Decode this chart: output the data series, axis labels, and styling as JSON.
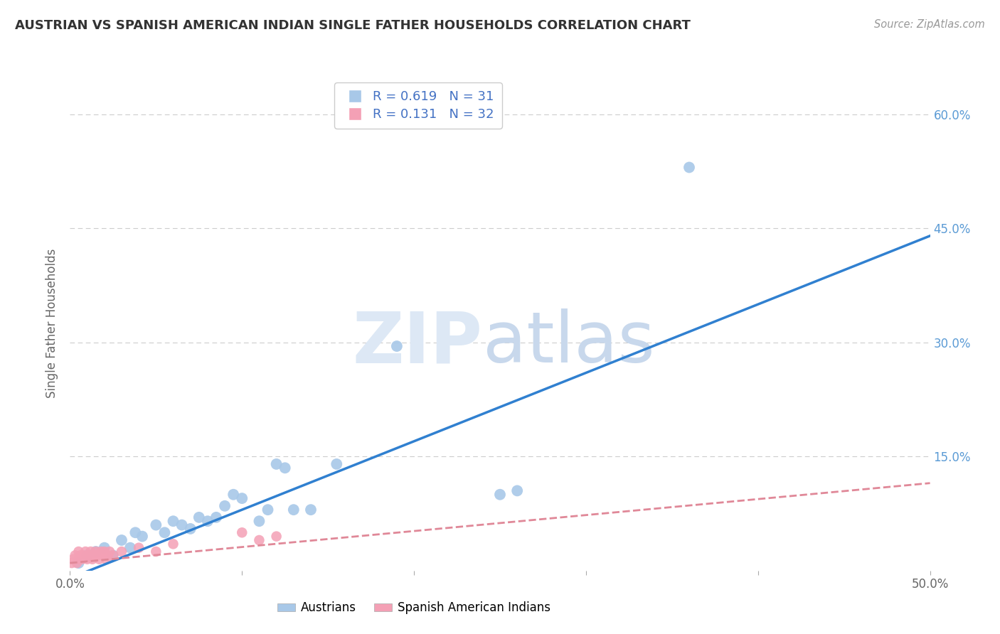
{
  "title": "AUSTRIAN VS SPANISH AMERICAN INDIAN SINGLE FATHER HOUSEHOLDS CORRELATION CHART",
  "source": "Source: ZipAtlas.com",
  "ylabel": "Single Father Households",
  "xlim": [
    0.0,
    0.5
  ],
  "ylim": [
    0.0,
    0.65
  ],
  "blue_R": "0.619",
  "blue_N": "31",
  "pink_R": "0.131",
  "pink_N": "32",
  "blue_color": "#a8c8e8",
  "pink_color": "#f4a0b5",
  "blue_line_color": "#3080d0",
  "pink_line_color": "#e08898",
  "grid_color": "#cccccc",
  "background_color": "#ffffff",
  "watermark_zip": "ZIP",
  "watermark_atlas": "atlas",
  "legend_label_austrians": "Austrians",
  "legend_label_spanish": "Spanish American Indians",
  "austrians_x": [
    0.005,
    0.01,
    0.015,
    0.02,
    0.025,
    0.03,
    0.035,
    0.038,
    0.042,
    0.05,
    0.055,
    0.06,
    0.065,
    0.07,
    0.075,
    0.08,
    0.085,
    0.09,
    0.095,
    0.1,
    0.11,
    0.115,
    0.12,
    0.125,
    0.13,
    0.14,
    0.155,
    0.19,
    0.25,
    0.26,
    0.36
  ],
  "austrians_y": [
    0.01,
    0.02,
    0.025,
    0.03,
    0.02,
    0.04,
    0.03,
    0.05,
    0.045,
    0.06,
    0.05,
    0.065,
    0.06,
    0.055,
    0.07,
    0.065,
    0.07,
    0.085,
    0.1,
    0.095,
    0.065,
    0.08,
    0.14,
    0.135,
    0.08,
    0.08,
    0.14,
    0.295,
    0.1,
    0.105,
    0.53
  ],
  "spanish_x": [
    0.001,
    0.002,
    0.003,
    0.004,
    0.005,
    0.005,
    0.006,
    0.007,
    0.008,
    0.009,
    0.01,
    0.011,
    0.012,
    0.013,
    0.014,
    0.015,
    0.016,
    0.017,
    0.018,
    0.019,
    0.02,
    0.021,
    0.022,
    0.023,
    0.025,
    0.03,
    0.04,
    0.05,
    0.06,
    0.1,
    0.11,
    0.12
  ],
  "spanish_y": [
    0.01,
    0.015,
    0.02,
    0.01,
    0.015,
    0.025,
    0.02,
    0.015,
    0.02,
    0.025,
    0.015,
    0.02,
    0.025,
    0.015,
    0.02,
    0.025,
    0.02,
    0.015,
    0.025,
    0.02,
    0.025,
    0.015,
    0.02,
    0.025,
    0.02,
    0.025,
    0.03,
    0.025,
    0.035,
    0.05,
    0.04,
    0.045
  ],
  "blue_trendline_x": [
    0.0,
    0.5
  ],
  "blue_trendline_y": [
    -0.01,
    0.44
  ],
  "pink_trendline_x": [
    0.0,
    0.5
  ],
  "pink_trendline_y": [
    0.01,
    0.115
  ]
}
